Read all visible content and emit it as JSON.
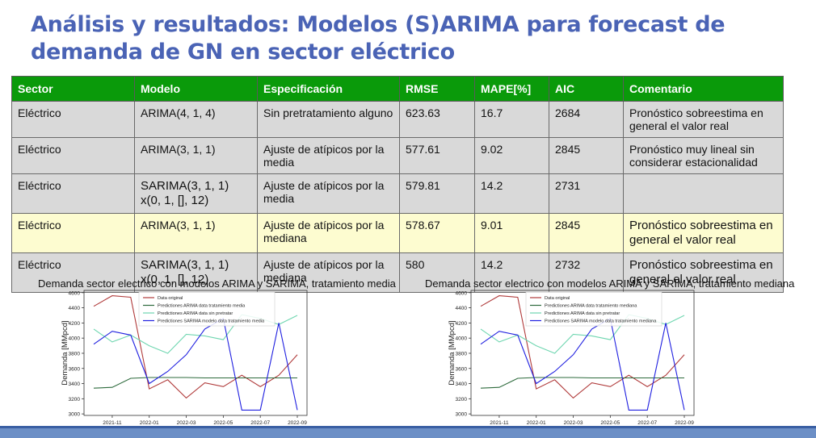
{
  "slide": {
    "title": "Análisis y resultados: Modelos (S)ARIMA para forecast de demanda de GN en sector eléctrico"
  },
  "table": {
    "headers": [
      "Sector",
      "Modelo",
      "Especificación",
      "RMSE",
      "MAPE[%]",
      "AIC",
      "Comentario"
    ],
    "rows": [
      {
        "sector": "Eléctrico",
        "modelo": "ARIMA(4, 1, 4)",
        "especificacion": "Sin pretratamiento alguno",
        "rmse": "623.63",
        "mape": "16.7",
        "aic": "2684",
        "comentario": "Pronóstico sobreestima en general el valor real"
      },
      {
        "sector": "Eléctrico",
        "modelo": "ARIMA(3, 1, 1)",
        "especificacion": "Ajuste de atípicos por la media",
        "rmse": "577.61",
        "mape": "9.02",
        "aic": "2845",
        "comentario": "Pronóstico muy lineal sin considerar estacionalidad"
      },
      {
        "sector": "Eléctrico",
        "modelo": "SARIMA(3, 1, 1) x(0, 1, [], 12)",
        "especificacion": "Ajuste de atípicos por la media",
        "rmse": "579.81",
        "mape": "14.2",
        "aic": "2731",
        "comentario": ""
      },
      {
        "sector": "Eléctrico",
        "modelo": "ARIMA(3, 1, 1)",
        "especificacion": "Ajuste de atípicos por la mediana",
        "rmse": "578.67",
        "mape": "9.01",
        "aic": "2845",
        "comentario": "Pronóstico sobreestima en general el valor real"
      },
      {
        "sector": "Eléctrico",
        "modelo": "SARIMA(3, 1, 1) x(0, 1, [], 12)",
        "especificacion": "Ajuste de atípicos por la mediana",
        "rmse": "580",
        "mape": "14.2",
        "aic": "2732",
        "comentario": "Pronóstico sobreestima en general el valor real"
      }
    ]
  },
  "chart_data": [
    {
      "type": "line",
      "title": "Demanda sector electrico con modelos ARIMA y SARIMA, tratamiento media",
      "xlabel": "",
      "ylabel": "Demanda [MMpcd]",
      "ylim": [
        2980,
        4630
      ],
      "yticks": [
        3000,
        3200,
        3400,
        3600,
        3800,
        4000,
        4200,
        4400,
        4600
      ],
      "xticks": [
        "2021-11",
        "2022-01",
        "2022-03",
        "2022-05",
        "2022-07",
        "2022-09"
      ],
      "x": [
        "2021-10",
        "2021-11",
        "2021-12",
        "2022-01",
        "2022-02",
        "2022-03",
        "2022-04",
        "2022-05",
        "2022-06",
        "2022-07",
        "2022-08",
        "2022-09"
      ],
      "legend_position": "top",
      "series": [
        {
          "name": "Data original",
          "color": "#b03a3a",
          "values": [
            4420,
            4560,
            4540,
            3330,
            3450,
            3210,
            3410,
            3360,
            3510,
            3360,
            3510,
            3780
          ]
        },
        {
          "name": "Predictiones ARIMA data tratamiento media",
          "color": "#2e6b3d",
          "values": [
            3340,
            3350,
            3470,
            3480,
            3480,
            3480,
            3475,
            3475,
            3475,
            3475,
            3475,
            3475
          ]
        },
        {
          "name": "Predictiones ARIMA data sin pretratar",
          "color": "#6fd6b0",
          "values": [
            4120,
            3950,
            4040,
            3900,
            3800,
            4050,
            4030,
            3980,
            4310,
            4260,
            4180,
            4300
          ]
        },
        {
          "name": "Predictiones SARIMA modelo data tratamiento media",
          "color": "#2020e0",
          "values": [
            3920,
            4090,
            4040,
            3400,
            3560,
            3780,
            4120,
            4260,
            3050,
            3050,
            4200,
            3050
          ]
        }
      ]
    },
    {
      "type": "line",
      "title": "Demanda sector electrico con modelos ARIMA y SARIMA, tratamiento mediana",
      "xlabel": "",
      "ylabel": "Demanda [MMpcd]",
      "ylim": [
        2980,
        4630
      ],
      "yticks": [
        3000,
        3200,
        3400,
        3600,
        3800,
        4000,
        4200,
        4400,
        4600
      ],
      "xticks": [
        "2021-11",
        "2022-01",
        "2022-03",
        "2022-05",
        "2022-07",
        "2022-09"
      ],
      "x": [
        "2021-10",
        "2021-11",
        "2021-12",
        "2022-01",
        "2022-02",
        "2022-03",
        "2022-04",
        "2022-05",
        "2022-06",
        "2022-07",
        "2022-08",
        "2022-09"
      ],
      "legend_position": "top",
      "series": [
        {
          "name": "Data original",
          "color": "#b03a3a",
          "values": [
            4420,
            4560,
            4540,
            3330,
            3450,
            3210,
            3410,
            3360,
            3510,
            3360,
            3510,
            3780
          ]
        },
        {
          "name": "Predictiones ARIMA data tratamiento mediana",
          "color": "#2e6b3d",
          "values": [
            3340,
            3350,
            3470,
            3480,
            3480,
            3480,
            3475,
            3475,
            3475,
            3475,
            3475,
            3475
          ]
        },
        {
          "name": "Predictiones ARIMA data sin pretratar",
          "color": "#6fd6b0",
          "values": [
            4120,
            3950,
            4040,
            3900,
            3800,
            4050,
            4030,
            3980,
            4310,
            4260,
            4180,
            4300
          ]
        },
        {
          "name": "Predictiones SARIMA modelo data tratamiento mediana",
          "color": "#2020e0",
          "values": [
            3920,
            4090,
            4040,
            3400,
            3560,
            3780,
            4120,
            4260,
            3050,
            3050,
            4200,
            3050
          ]
        }
      ]
    }
  ]
}
